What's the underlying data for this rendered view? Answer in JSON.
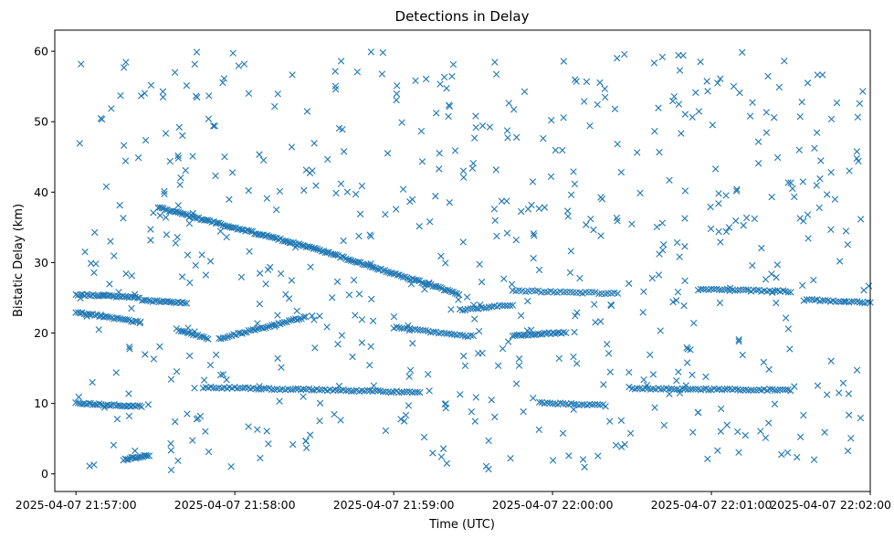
{
  "chart_data": {
    "type": "scatter",
    "title": "Detections in Delay",
    "xlabel": "Time (UTC)",
    "ylabel": "Bistatic Delay (km)",
    "marker": "x",
    "color": "#1f77b4",
    "x_unit": "seconds after 2025-04-07 21:57:00",
    "xlim": [
      -8,
      300
    ],
    "ylim": [
      -2.5,
      63
    ],
    "xticks": [
      {
        "value": 0,
        "label": "2025-04-07 21:57:00"
      },
      {
        "value": 60,
        "label": "2025-04-07 21:58:00"
      },
      {
        "value": 120,
        "label": "2025-04-07 21:59:00"
      },
      {
        "value": 180,
        "label": "2025-04-07 22:00:00"
      },
      {
        "value": 240,
        "label": "2025-04-07 22:01:00"
      },
      {
        "value": 300,
        "label": "2025-04-07 22:02:00"
      }
    ],
    "yticks": [
      0,
      10,
      20,
      30,
      40,
      50,
      60
    ],
    "grid": false,
    "tracks": [
      {
        "name": "track-a",
        "x_start": 0,
        "x_end": 24,
        "y_start": 25.5,
        "y_end": 25.0,
        "step": 0.8
      },
      {
        "name": "track-b",
        "x_start": 0,
        "x_end": 24,
        "y_start": 23.0,
        "y_end": 21.5,
        "step": 0.8
      },
      {
        "name": "track-c",
        "x_start": 0,
        "x_end": 25,
        "y_start": 10.0,
        "y_end": 9.6,
        "step": 0.8
      },
      {
        "name": "track-d",
        "x_start": 18,
        "x_end": 28,
        "y_start": 2.0,
        "y_end": 2.7,
        "step": 0.6
      },
      {
        "name": "track-e",
        "x_start": 25,
        "x_end": 42,
        "y_start": 24.6,
        "y_end": 24.3,
        "step": 0.8
      },
      {
        "name": "track-f",
        "x_start": 31,
        "x_end": 90,
        "y_start": 37.8,
        "y_end": 32.0,
        "step": 0.7
      },
      {
        "name": "track-g",
        "x_start": 38,
        "x_end": 50,
        "y_start": 20.5,
        "y_end": 19.2,
        "step": 0.8
      },
      {
        "name": "track-h",
        "x_start": 54,
        "x_end": 87,
        "y_start": 19.2,
        "y_end": 22.3,
        "step": 0.8
      },
      {
        "name": "track-i",
        "x_start": 90,
        "x_end": 145,
        "y_start": 32.0,
        "y_end": 25.5,
        "step": 0.7
      },
      {
        "name": "track-j",
        "x_start": 48,
        "x_end": 130,
        "y_start": 12.3,
        "y_end": 11.6,
        "step": 1.0
      },
      {
        "name": "track-k",
        "x_start": 120,
        "x_end": 150,
        "y_start": 20.8,
        "y_end": 19.5,
        "step": 1.0
      },
      {
        "name": "track-l",
        "x_start": 145,
        "x_end": 165,
        "y_start": 23.3,
        "y_end": 24.0,
        "step": 1.0
      },
      {
        "name": "track-m",
        "x_start": 165,
        "x_end": 185,
        "y_start": 19.6,
        "y_end": 20.1,
        "step": 0.8
      },
      {
        "name": "track-n",
        "x_start": 165,
        "x_end": 205,
        "y_start": 26.0,
        "y_end": 25.6,
        "step": 1.2
      },
      {
        "name": "track-o",
        "x_start": 175,
        "x_end": 200,
        "y_start": 10.1,
        "y_end": 9.7,
        "step": 1.0
      },
      {
        "name": "track-p",
        "x_start": 210,
        "x_end": 270,
        "y_start": 12.1,
        "y_end": 11.9,
        "step": 1.0
      },
      {
        "name": "track-q",
        "x_start": 235,
        "x_end": 270,
        "y_start": 26.2,
        "y_end": 25.9,
        "step": 1.0
      },
      {
        "name": "track-r",
        "x_start": 275,
        "x_end": 300,
        "y_start": 24.7,
        "y_end": 24.3,
        "step": 1.0
      }
    ],
    "clutter": {
      "count": 620,
      "x_range": [
        0,
        300
      ],
      "y_range": [
        0.5,
        60
      ],
      "seed": 20250407
    }
  }
}
